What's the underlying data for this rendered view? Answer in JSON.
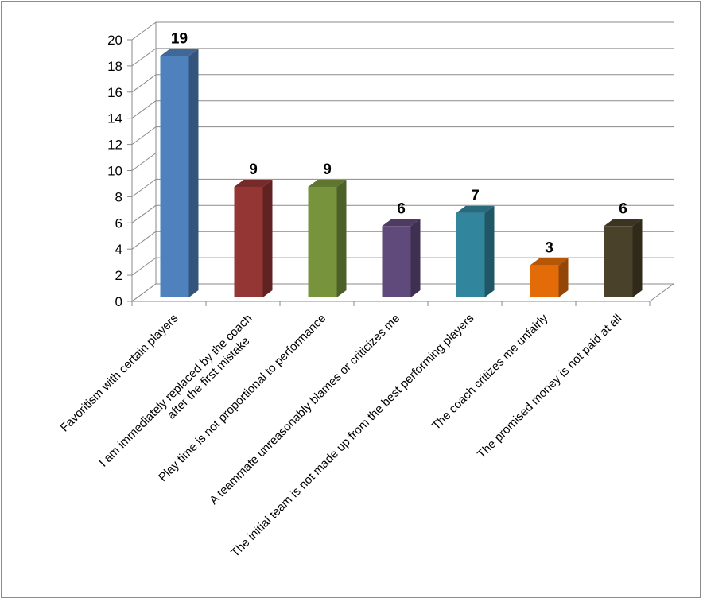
{
  "chart_data": {
    "type": "bar",
    "three_d": true,
    "title": "",
    "xlabel": "",
    "ylabel": "",
    "ylim": [
      0,
      20
    ],
    "yticks": [
      0,
      2,
      4,
      6,
      8,
      10,
      12,
      14,
      16,
      18,
      20
    ],
    "grid": true,
    "legend": "none",
    "categories": [
      [
        "Favoritism with certain players"
      ],
      [
        "I am immediately replaced by the coach",
        "after the first mistake"
      ],
      [
        "Play time is not proportional to performance"
      ],
      [
        "A teammate unreasonably blames or criticizes me"
      ],
      [
        "The initial team is not made up from the best performing players"
      ],
      [
        "The coach critizes me unfairly"
      ],
      [
        "The promised money is not paid at all"
      ]
    ],
    "values": [
      19,
      9,
      9,
      6,
      7,
      3,
      6
    ],
    "data_labels": [
      "19",
      "9",
      "9",
      "6",
      "7",
      "3",
      "6"
    ],
    "colors": [
      "#4F81BD",
      "#943634",
      "#77933C",
      "#604A7B",
      "#31859C",
      "#E36C09",
      "#4A412A"
    ]
  }
}
